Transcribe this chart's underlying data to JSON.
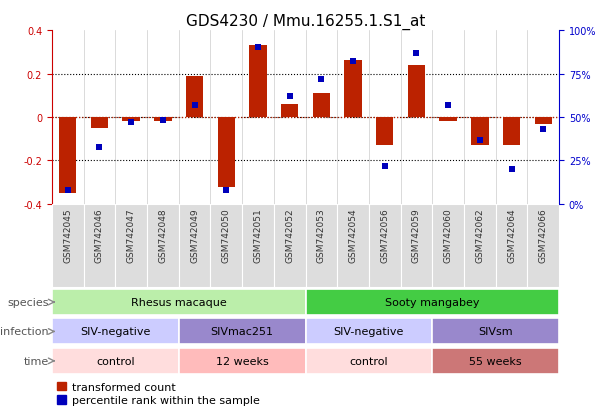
{
  "title": "GDS4230 / Mmu.16255.1.S1_at",
  "samples": [
    "GSM742045",
    "GSM742046",
    "GSM742047",
    "GSM742048",
    "GSM742049",
    "GSM742050",
    "GSM742051",
    "GSM742052",
    "GSM742053",
    "GSM742054",
    "GSM742056",
    "GSM742059",
    "GSM742060",
    "GSM742062",
    "GSM742064",
    "GSM742066"
  ],
  "bar_values": [
    -0.35,
    -0.05,
    -0.02,
    -0.02,
    0.19,
    -0.32,
    0.33,
    0.06,
    0.11,
    0.26,
    -0.13,
    0.24,
    -0.02,
    -0.13,
    -0.13,
    -0.03
  ],
  "dot_values": [
    8,
    33,
    47,
    48,
    57,
    8,
    90,
    62,
    72,
    82,
    22,
    87,
    57,
    37,
    20,
    43
  ],
  "ylim_left": [
    -0.4,
    0.4
  ],
  "ylim_right": [
    0,
    100
  ],
  "bar_color": "#bb2200",
  "dot_color": "#0000bb",
  "species_row": [
    {
      "label": "Rhesus macaque",
      "start": 0,
      "end": 8,
      "color": "#bbeeaa"
    },
    {
      "label": "Sooty mangabey",
      "start": 8,
      "end": 16,
      "color": "#44cc44"
    }
  ],
  "infection_row": [
    {
      "label": "SIV-negative",
      "start": 0,
      "end": 4,
      "color": "#ccccff"
    },
    {
      "label": "SIVmac251",
      "start": 4,
      "end": 8,
      "color": "#9988cc"
    },
    {
      "label": "SIV-negative",
      "start": 8,
      "end": 12,
      "color": "#ccccff"
    },
    {
      "label": "SIVsm",
      "start": 12,
      "end": 16,
      "color": "#9988cc"
    }
  ],
  "time_row": [
    {
      "label": "control",
      "start": 0,
      "end": 4,
      "color": "#ffdddd"
    },
    {
      "label": "12 weeks",
      "start": 4,
      "end": 8,
      "color": "#ffbbbb"
    },
    {
      "label": "control",
      "start": 8,
      "end": 12,
      "color": "#ffdddd"
    },
    {
      "label": "55 weeks",
      "start": 12,
      "end": 16,
      "color": "#cc7777"
    }
  ],
  "legend_bar_color": "#bb2200",
  "legend_dot_color": "#0000bb",
  "legend_bar_label": "transformed count",
  "legend_dot_label": "percentile rank within the sample",
  "row_labels": [
    "species",
    "infection",
    "time"
  ],
  "row_label_color": "#555555",
  "left_axis_color": "#cc0000",
  "right_axis_color": "#0000cc",
  "tick_label_fontsize": 6.5,
  "title_fontsize": 11,
  "left_yticks": [
    0.4,
    0.2,
    0.0,
    -0.2,
    -0.4
  ],
  "left_yticklabels": [
    "0.4",
    "0.2",
    "0",
    "-0.2",
    "-0.4"
  ],
  "right_yticks": [
    0,
    25,
    50,
    75,
    100
  ],
  "right_yticklabels": [
    "0%",
    "25%",
    "50%",
    "75%",
    "100%"
  ]
}
